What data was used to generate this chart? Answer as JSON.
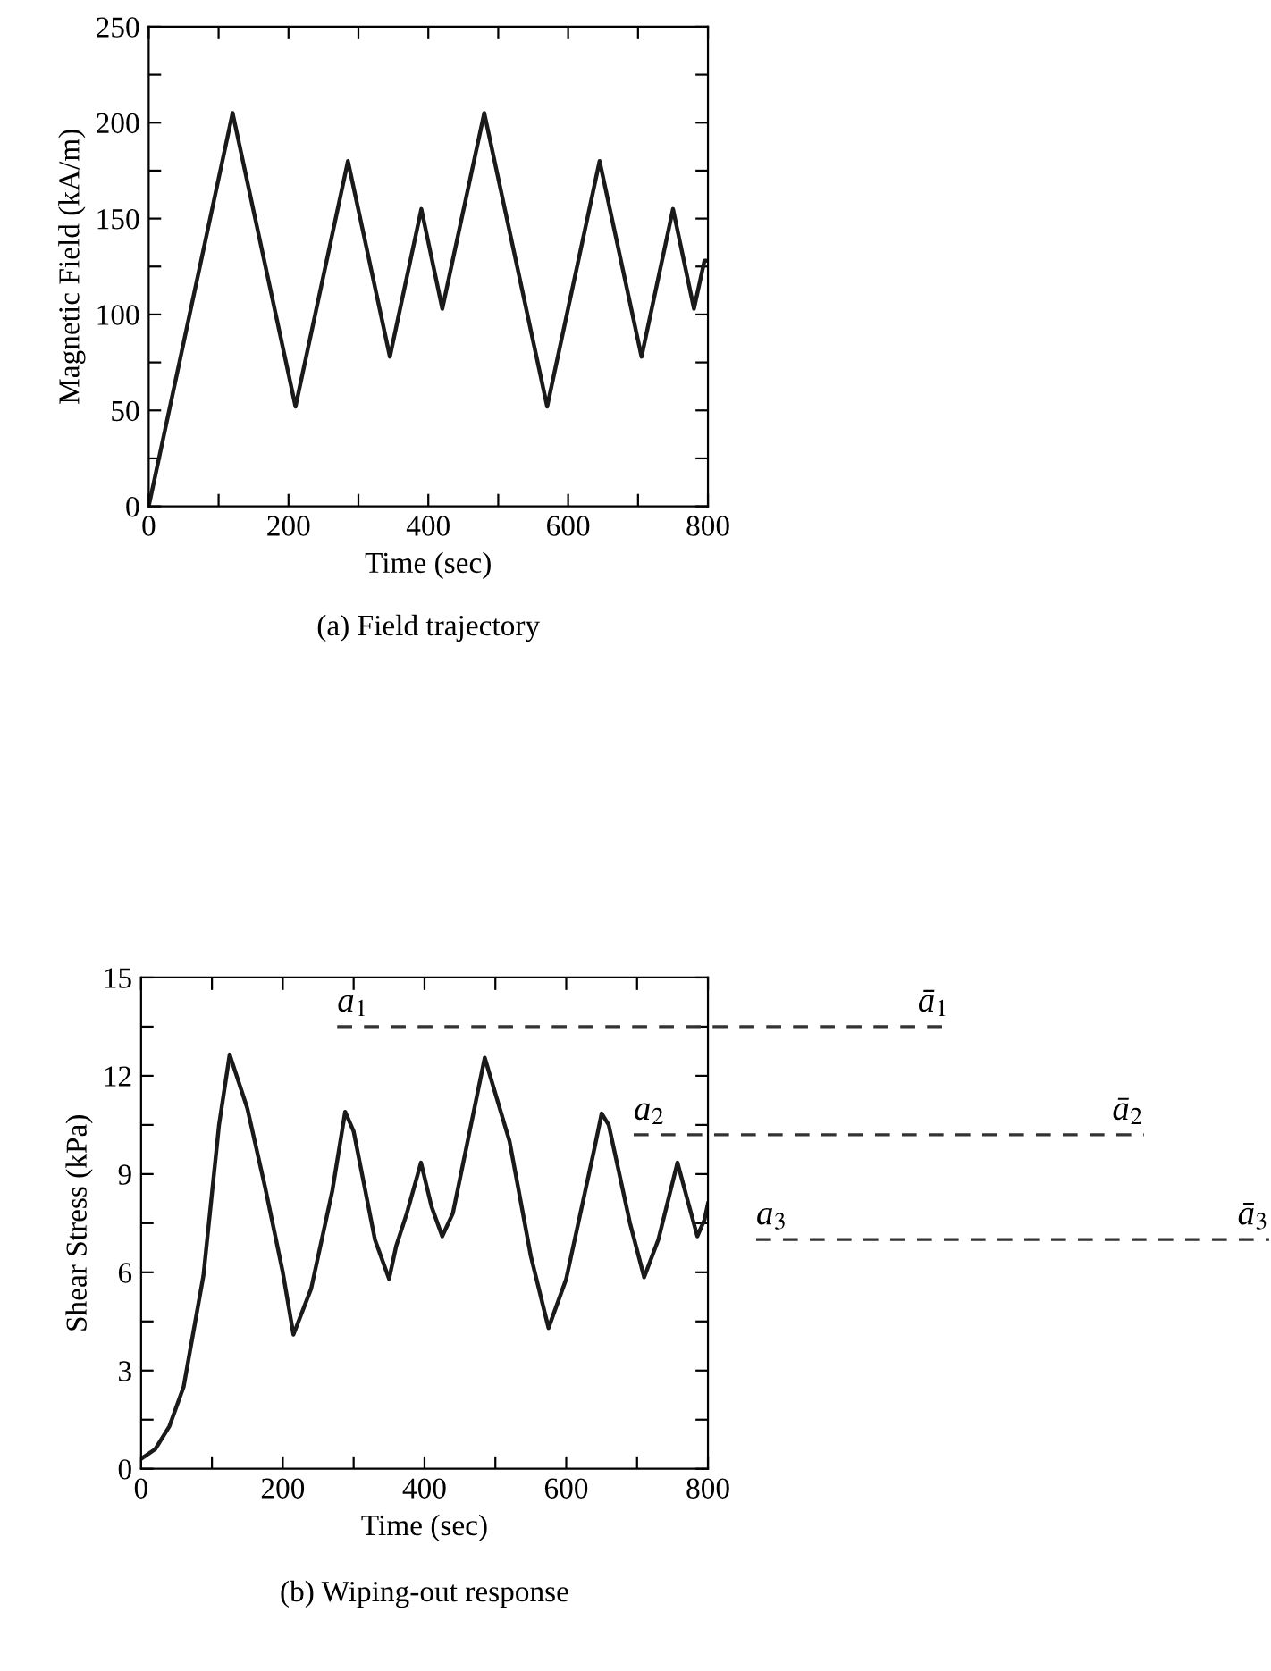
{
  "chart_data": [
    {
      "type": "line",
      "title": "(a) Field trajectory",
      "xlabel": "Time (sec)",
      "ylabel": "Magnetic Field (kA/m)",
      "x": [
        0,
        120,
        210,
        285,
        345,
        390,
        420,
        480,
        570,
        645,
        705,
        750,
        780,
        795,
        800
      ],
      "series": [
        {
          "color": "#1a1a1a",
          "values": [
            0,
            205,
            52,
            180,
            78,
            155,
            103,
            205,
            52,
            180,
            78,
            155,
            103,
            128,
            128
          ]
        }
      ],
      "xlim": [
        0,
        800
      ],
      "xticks": [
        0,
        {
          "value": 100,
          "label": null
        },
        200,
        {
          "value": 300,
          "label": null
        },
        400,
        {
          "value": 500,
          "label": null
        },
        600,
        {
          "value": 700,
          "label": null
        },
        800
      ],
      "ylim": [
        0,
        250
      ],
      "yticks": [
        0,
        {
          "value": 25,
          "label": null
        },
        50,
        {
          "value": 75,
          "label": null
        },
        100,
        {
          "value": 125,
          "label": null
        },
        150,
        {
          "value": 175,
          "label": null
        },
        200,
        {
          "value": 225,
          "label": null
        },
        250
      ],
      "grid": false,
      "legend": false,
      "marker": "none",
      "line_style": "solid"
    },
    {
      "type": "line",
      "title": "(b) Wiping-out response",
      "xlabel": "Time (sec)",
      "ylabel": "Shear Stress (kPa)",
      "x": [
        0,
        20,
        40,
        60,
        88,
        110,
        125,
        150,
        175,
        200,
        215,
        240,
        270,
        288,
        300,
        330,
        350,
        360,
        375,
        395,
        410,
        425,
        440,
        485,
        520,
        550,
        575,
        600,
        640,
        650,
        660,
        690,
        710,
        730,
        757,
        770,
        785,
        795,
        800
      ],
      "series": [
        {
          "color": "#1a1a1a",
          "values": [
            0.3,
            0.6,
            1.3,
            2.5,
            5.9,
            10.5,
            12.65,
            11.0,
            8.6,
            6.0,
            4.1,
            5.5,
            8.5,
            10.9,
            10.3,
            7.0,
            5.8,
            6.8,
            7.8,
            9.35,
            8.0,
            7.1,
            7.8,
            12.55,
            10.0,
            6.5,
            4.3,
            5.8,
            9.8,
            10.85,
            10.5,
            7.5,
            5.85,
            7.0,
            9.35,
            8.3,
            7.1,
            7.6,
            8.1
          ]
        }
      ],
      "xlim": [
        0,
        800
      ],
      "xticks": [
        0,
        {
          "value": 100,
          "label": null
        },
        200,
        {
          "value": 300,
          "label": null
        },
        400,
        {
          "value": 500,
          "label": null
        },
        600,
        {
          "value": 700,
          "label": null
        },
        800
      ],
      "ylim": [
        0,
        15
      ],
      "yticks": [
        0,
        {
          "value": 1.5,
          "label": null
        },
        3,
        {
          "value": 4.5,
          "label": null
        },
        6,
        {
          "value": 7.5,
          "label": null
        },
        9,
        {
          "value": 10.5,
          "label": null
        },
        12,
        {
          "value": 13.5,
          "label": null
        },
        15
      ],
      "ref_lines": [
        {
          "axis": "y",
          "value": 13.5,
          "label": "a$_{1}$",
          "line_style": "dashed",
          "color": "#333333"
        },
        {
          "axis": "y",
          "value": 10.2,
          "label": "a$_{2}$",
          "line_style": "dashed",
          "color": "#333333"
        },
        {
          "axis": "y",
          "value": 7.0,
          "label": "a$_{3}$",
          "line_style": "dashed",
          "color": "#333333"
        }
      ],
      "annotations": [
        "ā$_{1}$",
        "ā$_{2}$",
        "ā$_{3}$"
      ],
      "grid": false,
      "legend": false,
      "marker": "none",
      "line_style": "solid"
    }
  ]
}
